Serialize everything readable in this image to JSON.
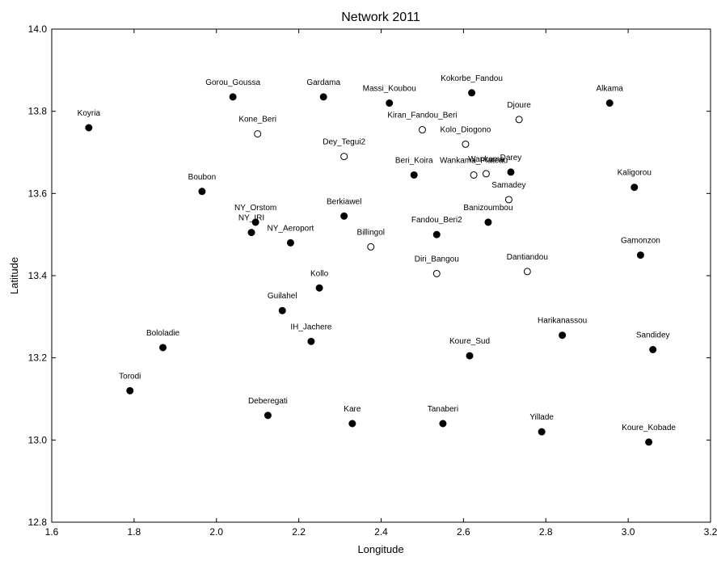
{
  "chart_data": {
    "type": "scatter",
    "title": "Network 2011",
    "xlabel": "Longitude",
    "ylabel": "Latitude",
    "xlim": [
      1.6,
      3.2
    ],
    "ylim": [
      12.8,
      14.0
    ],
    "xticks": [
      "1.6",
      "1.8",
      "2.0",
      "2.2",
      "2.4",
      "2.6",
      "2.8",
      "3.0",
      "3.2"
    ],
    "yticks": [
      "12.8",
      "13.0",
      "13.2",
      "13.4",
      "13.6",
      "13.8",
      "14.0"
    ],
    "grid": false,
    "legend": "none",
    "marker_styles": {
      "filled": "#000000",
      "open": "#ffffff"
    },
    "points": [
      {
        "label": "Koyria",
        "x": 1.69,
        "y": 13.76,
        "filled": true
      },
      {
        "label": "Gorou_Goussa",
        "x": 2.04,
        "y": 13.835,
        "filled": true
      },
      {
        "label": "Gardama",
        "x": 2.26,
        "y": 13.835,
        "filled": true
      },
      {
        "label": "Massi_Koubou",
        "x": 2.42,
        "y": 13.82,
        "filled": true
      },
      {
        "label": "Kokorbe_Fandou",
        "x": 2.62,
        "y": 13.845,
        "filled": true
      },
      {
        "label": "Alkama",
        "x": 2.955,
        "y": 13.82,
        "filled": true
      },
      {
        "label": "Kone_Beri",
        "x": 2.1,
        "y": 13.745,
        "filled": false
      },
      {
        "label": "Kiran_Fandou_Beri",
        "x": 2.5,
        "y": 13.755,
        "filled": false
      },
      {
        "label": "Djoure",
        "x": 2.735,
        "y": 13.78,
        "filled": false
      },
      {
        "label": "Kolo_Diogono",
        "x": 2.605,
        "y": 13.72,
        "filled": false
      },
      {
        "label": "Dey_Tegui2",
        "x": 2.31,
        "y": 13.69,
        "filled": false
      },
      {
        "label": "Beri_Koira",
        "x": 2.48,
        "y": 13.645,
        "filled": true
      },
      {
        "label": "Wankama_Plateau",
        "x": 2.625,
        "y": 13.645,
        "filled": false
      },
      {
        "label": "Wankama",
        "x": 2.655,
        "y": 13.648,
        "filled": false
      },
      {
        "label": "Darey",
        "x": 2.715,
        "y": 13.652,
        "filled": true
      },
      {
        "label": "Samadey",
        "x": 2.71,
        "y": 13.585,
        "filled": false
      },
      {
        "label": "Kaligorou",
        "x": 3.015,
        "y": 13.615,
        "filled": true
      },
      {
        "label": "Boubon",
        "x": 1.965,
        "y": 13.605,
        "filled": true
      },
      {
        "label": "NY_Orstom",
        "x": 2.095,
        "y": 13.53,
        "filled": true
      },
      {
        "label": "NY_IRI",
        "x": 2.085,
        "y": 13.505,
        "filled": true
      },
      {
        "label": "Berkiawel",
        "x": 2.31,
        "y": 13.545,
        "filled": true
      },
      {
        "label": "NY_Aeroport",
        "x": 2.18,
        "y": 13.48,
        "filled": true
      },
      {
        "label": "Billingol",
        "x": 2.375,
        "y": 13.47,
        "filled": false
      },
      {
        "label": "Fandou_Beri2",
        "x": 2.535,
        "y": 13.5,
        "filled": true
      },
      {
        "label": "Banizoumbou",
        "x": 2.66,
        "y": 13.53,
        "filled": true
      },
      {
        "label": "Gamonzon",
        "x": 3.03,
        "y": 13.45,
        "filled": true
      },
      {
        "label": "Diri_Bangou",
        "x": 2.535,
        "y": 13.405,
        "filled": false
      },
      {
        "label": "Dantiandou",
        "x": 2.755,
        "y": 13.41,
        "filled": false
      },
      {
        "label": "Kollo",
        "x": 2.25,
        "y": 13.37,
        "filled": true
      },
      {
        "label": "Guilahel",
        "x": 2.16,
        "y": 13.315,
        "filled": true
      },
      {
        "label": "IH_Jachere",
        "x": 2.23,
        "y": 13.24,
        "filled": true
      },
      {
        "label": "Harikanassou",
        "x": 2.84,
        "y": 13.255,
        "filled": true
      },
      {
        "label": "Bololadie",
        "x": 1.87,
        "y": 13.225,
        "filled": true
      },
      {
        "label": "Koure_Sud",
        "x": 2.615,
        "y": 13.205,
        "filled": true
      },
      {
        "label": "Sandidey",
        "x": 3.06,
        "y": 13.22,
        "filled": true
      },
      {
        "label": "Torodi",
        "x": 1.79,
        "y": 13.12,
        "filled": true
      },
      {
        "label": "Deberegati",
        "x": 2.125,
        "y": 13.06,
        "filled": true
      },
      {
        "label": "Kare",
        "x": 2.33,
        "y": 13.04,
        "filled": true
      },
      {
        "label": "Tanaberi",
        "x": 2.55,
        "y": 13.04,
        "filled": true
      },
      {
        "label": "Yillade",
        "x": 2.79,
        "y": 13.02,
        "filled": true
      },
      {
        "label": "Koure_Kobade",
        "x": 3.05,
        "y": 12.995,
        "filled": true
      }
    ]
  }
}
